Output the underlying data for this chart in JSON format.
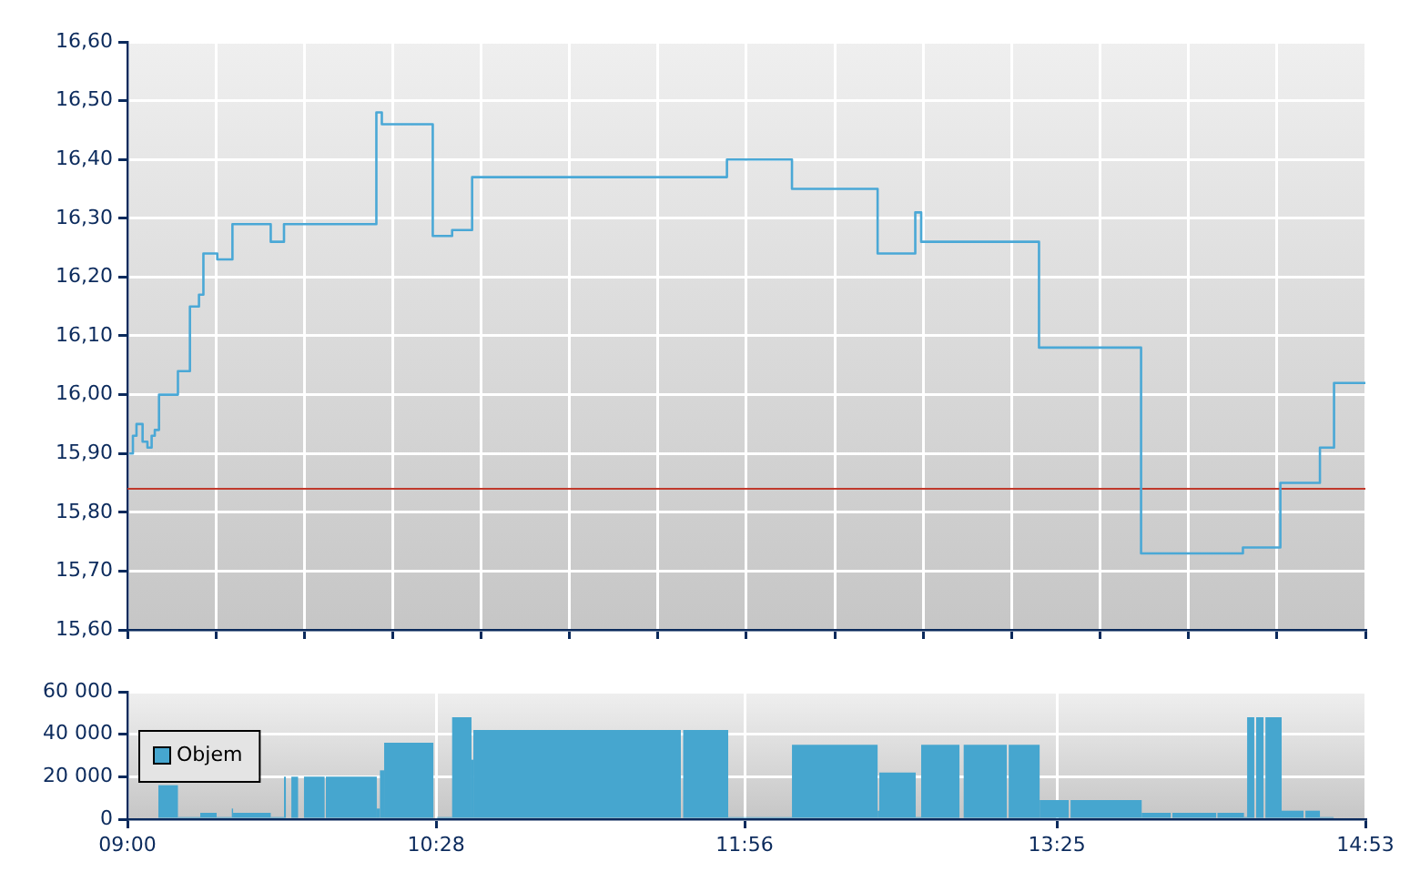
{
  "chart_data": [
    {
      "type": "step",
      "color": "#4aa8d6",
      "marker": "none",
      "grid": true,
      "tick_labels": "y",
      "x": [
        9.009,
        9.026,
        9.043,
        9.072,
        9.095,
        9.115,
        9.13,
        9.15,
        9.24,
        9.297,
        9.34,
        9.361,
        9.427,
        9.499,
        9.681,
        9.744,
        10.183,
        10.209,
        10.451,
        10.543,
        10.638,
        11.849,
        12.158,
        12.565,
        12.744,
        12.772,
        13.332,
        13.817,
        14.301,
        14.479,
        14.667,
        14.734,
        14.883
      ],
      "values": [
        15.9,
        15.93,
        15.95,
        15.92,
        15.91,
        15.93,
        15.94,
        16.0,
        16.04,
        16.15,
        16.17,
        16.24,
        16.23,
        16.29,
        16.26,
        16.29,
        16.48,
        16.46,
        16.27,
        16.28,
        16.37,
        16.4,
        16.35,
        16.24,
        16.31,
        16.26,
        16.08,
        15.73,
        15.74,
        15.85,
        15.91,
        16.02,
        16.02
      ],
      "xlim": [
        9,
        14.883
      ],
      "xticks": [
        {
          "value": 9,
          "label": null
        },
        {
          "value": 9.42,
          "label": null
        },
        {
          "value": 9.84,
          "label": null
        },
        {
          "value": 10.261,
          "label": null
        },
        {
          "value": 10.681,
          "label": null
        },
        {
          "value": 11.101,
          "label": null
        },
        {
          "value": 11.521,
          "label": null
        },
        {
          "value": 11.941,
          "label": null
        },
        {
          "value": 12.362,
          "label": null
        },
        {
          "value": 12.782,
          "label": null
        },
        {
          "value": 13.202,
          "label": null
        },
        {
          "value": 13.622,
          "label": null
        },
        {
          "value": 14.043,
          "label": null
        },
        {
          "value": 14.463,
          "label": null
        },
        {
          "value": 14.883,
          "label": null
        }
      ],
      "ylim": [
        15.6,
        16.6
      ],
      "yticks": [
        {
          "value": 15.6,
          "label": "15,60"
        },
        {
          "value": 15.7,
          "label": "15,70"
        },
        {
          "value": 15.8,
          "label": "15,80"
        },
        {
          "value": 15.9,
          "label": "15,90"
        },
        {
          "value": 16.0,
          "label": "16,00"
        },
        {
          "value": 16.1,
          "label": "16,10"
        },
        {
          "value": 16.2,
          "label": "16,20"
        },
        {
          "value": 16.3,
          "label": "16,30"
        },
        {
          "value": 16.4,
          "label": "16,40"
        },
        {
          "value": 16.5,
          "label": "16,50"
        },
        {
          "value": 16.6,
          "label": "16,60"
        }
      ],
      "ref_lines": [
        {
          "axis": "y",
          "value": 15.84,
          "color": "#c0392b"
        }
      ]
    },
    {
      "type": "histogram",
      "grid": true,
      "legend": "left",
      "bins": [
        9.147,
        9.24,
        9.346,
        9.424,
        9.496,
        9.502,
        9.681,
        9.744,
        9.753,
        9.779,
        9.811,
        9.839,
        9.937,
        9.943,
        10.185,
        10.2,
        10.22,
        10.454,
        10.471,
        10.543,
        10.635,
        10.644,
        11.63,
        11.641,
        11.855,
        12.158,
        12.565,
        12.573,
        12.746,
        12.772,
        12.954,
        12.974,
        13.179,
        13.188,
        13.335,
        13.473,
        13.482,
        13.82,
        13.958,
        13.966,
        14.174,
        14.18,
        14.306,
        14.321,
        14.355,
        14.364,
        14.399,
        14.408,
        14.485,
        14.589,
        14.598,
        14.667,
        14.732
      ],
      "series": [
        {
          "name": "Objem",
          "color": "#46a6cf",
          "values": [
            16000,
            1000,
            3000,
            1000,
            5000,
            3000,
            1000,
            20000,
            0,
            20000,
            0,
            20000,
            0,
            20000,
            5000,
            23000,
            36000,
            0,
            1000,
            48000,
            28000,
            42000,
            0,
            42000,
            1000,
            35000,
            4000,
            22000,
            1000,
            35000,
            0,
            35000,
            0,
            35000,
            9000,
            0,
            9000,
            3000,
            0,
            3000,
            0,
            3000,
            1000,
            48000,
            0,
            48000,
            0,
            48000,
            4000,
            0,
            4000,
            1000
          ]
        }
      ],
      "xlim": [
        9,
        14.883
      ],
      "xticks": [
        {
          "value": 9,
          "label": "09:00"
        },
        {
          "value": 10.467,
          "label": "10:28"
        },
        {
          "value": 11.933,
          "label": "11:56"
        },
        {
          "value": 13.417,
          "label": "13:25"
        },
        {
          "value": 14.883,
          "label": "14:53"
        }
      ],
      "ylim": [
        0,
        60000
      ],
      "yticks": [
        {
          "value": 0,
          "label": "0"
        },
        {
          "value": 20000,
          "label": "20 000"
        },
        {
          "value": 40000,
          "label": "40 000"
        },
        {
          "value": 60000,
          "label": "60 000"
        }
      ]
    }
  ]
}
